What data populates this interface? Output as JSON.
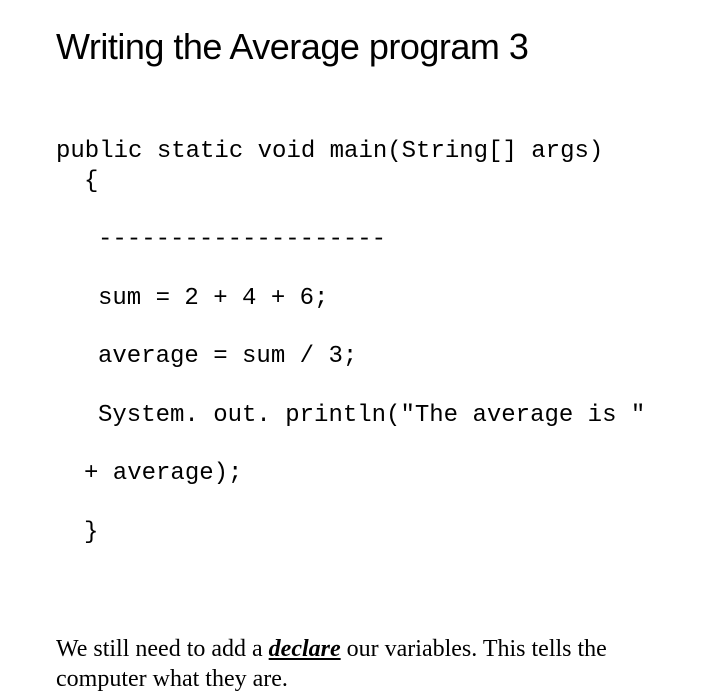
{
  "title": "Writing the Average program 3",
  "code": {
    "l1": "public static void main(String[] args)",
    "l2": "{",
    "l3": "--------------------",
    "l4": "sum = 2 + 4 + 6;",
    "l5": "average = sum / 3;",
    "l6": "System. out. println(\"The average is \"",
    "l7": "+ average);",
    "l8": "}"
  },
  "body": {
    "pre": "We still need to add a ",
    "decl": "declare",
    "post": " our variables.  This tells the computer what they are."
  },
  "colors": {
    "bg": "#ffffff",
    "text": "#000000"
  }
}
